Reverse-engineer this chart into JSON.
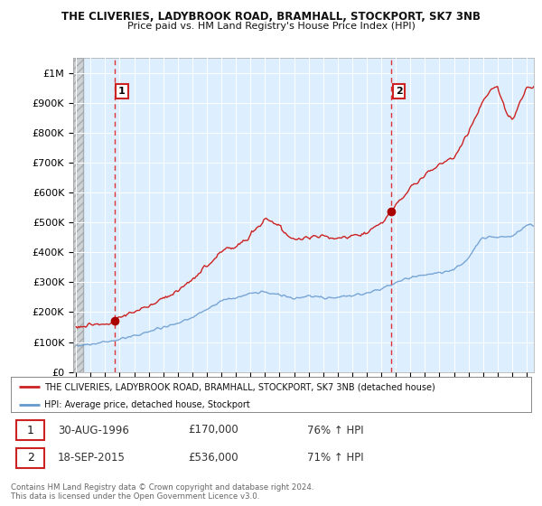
{
  "title1": "THE CLIVERIES, LADYBROOK ROAD, BRAMHALL, STOCKPORT, SK7 3NB",
  "title2": "Price paid vs. HM Land Registry's House Price Index (HPI)",
  "bg_color": "#ffffff",
  "plot_bg_color": "#ddeeff",
  "red_line_color": "#cc2222",
  "blue_line_color": "#6699cc",
  "dashed_line_color": "#dd3333",
  "marker_color": "#aa0000",
  "ylim": [
    0,
    1050000
  ],
  "yticks": [
    0,
    100000,
    200000,
    300000,
    400000,
    500000,
    600000,
    700000,
    800000,
    900000,
    1000000
  ],
  "ytick_labels": [
    "£0",
    "£100K",
    "£200K",
    "£300K",
    "£400K",
    "£500K",
    "£600K",
    "£700K",
    "£800K",
    "£900K",
    "£1M"
  ],
  "sale1_date": 1996.66,
  "sale1_price": 170000,
  "sale2_date": 2015.71,
  "sale2_price": 536000,
  "sale1_label": "1",
  "sale2_label": "2",
  "legend_red": "THE CLIVERIES, LADYBROOK ROAD, BRAMHALL, STOCKPORT, SK7 3NB (detached house)",
  "legend_blue": "HPI: Average price, detached house, Stockport",
  "footer": "Contains HM Land Registry data © Crown copyright and database right 2024.\nThis data is licensed under the Open Government Licence v3.0.",
  "hatch_end_year": 1994.5,
  "xmin": 1993.8,
  "xmax": 2025.5
}
